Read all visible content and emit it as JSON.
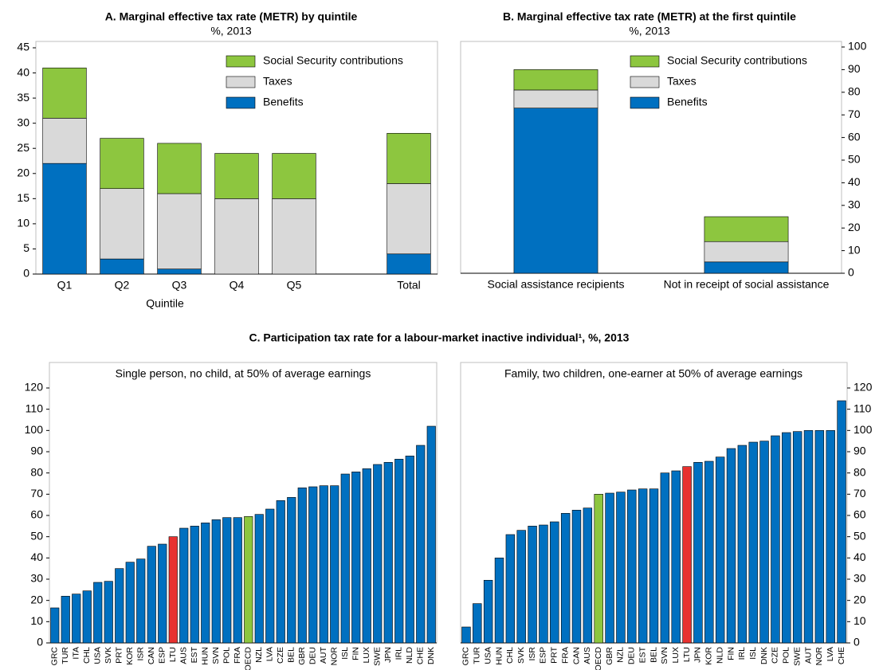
{
  "chart_data": [
    {
      "type": "stacked_bar",
      "title": "A. Marginal effective tax rate (METR) by quintile",
      "subtitle": "%, 2013",
      "x_label": "Quintile",
      "categories": [
        "Q1",
        "Q2",
        "Q3",
        "Q4",
        "Q5",
        null,
        "Total"
      ],
      "series": [
        {
          "name": "Benefits",
          "color": "#0070c0",
          "values": [
            22,
            3,
            1,
            0,
            0,
            null,
            4
          ]
        },
        {
          "name": "Taxes",
          "color": "#d9d9d9",
          "values": [
            9,
            14,
            15,
            15,
            15,
            null,
            14
          ]
        },
        {
          "name": "Social Security contributions",
          "color": "#8dc63f",
          "values": [
            10,
            10,
            10,
            9,
            9,
            null,
            10
          ]
        }
      ],
      "ylim": [
        0,
        45
      ],
      "yticks": [
        0,
        5,
        10,
        15,
        20,
        25,
        30,
        35,
        40,
        45
      ],
      "y_axis_side": "left",
      "legend": "upper right"
    },
    {
      "type": "stacked_bar",
      "title": "B. Marginal effective tax rate (METR) at the first quintile",
      "subtitle": "%, 2013",
      "categories": [
        "Social assistance recipients",
        "Not in receipt of social assistance"
      ],
      "series": [
        {
          "name": "Benefits",
          "color": "#0070c0",
          "values": [
            73,
            5
          ]
        },
        {
          "name": "Taxes",
          "color": "#d9d9d9",
          "values": [
            8,
            9
          ]
        },
        {
          "name": "Social Security contributions",
          "color": "#8dc63f",
          "values": [
            9,
            11
          ]
        }
      ],
      "ylim": [
        0,
        100
      ],
      "yticks": [
        0,
        10,
        20,
        30,
        40,
        50,
        60,
        70,
        80,
        90,
        100
      ],
      "y_axis_side": "right",
      "legend": "upper right"
    },
    {
      "type": "bar",
      "title": "Single person, no child, at 50% of average earnings",
      "categories": [
        "GRC",
        "TUR",
        "ITA",
        "CHL",
        "USA",
        "SVK",
        "PRT",
        "KOR",
        "ISR",
        "CAN",
        "ESP",
        "LTU",
        "AUS",
        "EST",
        "HUN",
        "SVN",
        "POL",
        "FRA",
        "OECD",
        "NZL",
        "LVA",
        "CZE",
        "BEL",
        "GBR",
        "DEU",
        "AUT",
        "NOR",
        "ISL",
        "FIN",
        "LUX",
        "SWE",
        "JPN",
        "IRL",
        "NLD",
        "CHE",
        "DNK"
      ],
      "values": [
        16.5,
        22,
        23,
        24.5,
        28.5,
        29,
        35,
        38,
        39.5,
        45.5,
        46.5,
        50,
        54,
        55,
        56.5,
        58,
        59,
        59,
        59.5,
        60.5,
        63,
        67,
        68.5,
        73,
        73.5,
        74,
        74,
        79.5,
        80.5,
        82,
        84,
        85,
        86.5,
        88,
        93,
        102
      ],
      "colors": [
        "#0070c0",
        "#0070c0",
        "#0070c0",
        "#0070c0",
        "#0070c0",
        "#0070c0",
        "#0070c0",
        "#0070c0",
        "#0070c0",
        "#0070c0",
        "#0070c0",
        "#e8312f",
        "#0070c0",
        "#0070c0",
        "#0070c0",
        "#0070c0",
        "#0070c0",
        "#0070c0",
        "#8dc63f",
        "#0070c0",
        "#0070c0",
        "#0070c0",
        "#0070c0",
        "#0070c0",
        "#0070c0",
        "#0070c0",
        "#0070c0",
        "#0070c0",
        "#0070c0",
        "#0070c0",
        "#0070c0",
        "#0070c0",
        "#0070c0",
        "#0070c0",
        "#0070c0",
        "#0070c0"
      ],
      "ylim": [
        0,
        120
      ],
      "yticks": [
        0,
        10,
        20,
        30,
        40,
        50,
        60,
        70,
        80,
        90,
        100,
        110,
        120
      ],
      "y_axis_side": "left"
    },
    {
      "type": "bar",
      "title": "Family, two children, one-earner at 50% of average earnings",
      "categories": [
        "GRC",
        "TUR",
        "USA",
        "HUN",
        "CHL",
        "SVK",
        "ISR",
        "ESP",
        "PRT",
        "FRA",
        "CAN",
        "AUS",
        "OECD",
        "GBR",
        "NZL",
        "DEU",
        "EST",
        "BEL",
        "SVN",
        "LUX",
        "LTU",
        "JPN",
        "KOR",
        "NLD",
        "FIN",
        "IRL",
        "ISL",
        "DNK",
        "CZE",
        "POL",
        "SWE",
        "AUT",
        "NOR",
        "LVA",
        "CHE"
      ],
      "values": [
        7.5,
        18.5,
        29.5,
        40,
        51,
        53,
        55,
        55.5,
        57,
        61,
        62.5,
        63.5,
        70,
        70.5,
        71,
        72,
        72.5,
        72.5,
        80,
        81,
        83,
        85,
        85.5,
        87.5,
        91.5,
        93,
        94.5,
        95,
        97.5,
        99,
        99.5,
        100,
        100,
        100,
        114
      ],
      "colors": [
        "#0070c0",
        "#0070c0",
        "#0070c0",
        "#0070c0",
        "#0070c0",
        "#0070c0",
        "#0070c0",
        "#0070c0",
        "#0070c0",
        "#0070c0",
        "#0070c0",
        "#0070c0",
        "#8dc63f",
        "#0070c0",
        "#0070c0",
        "#0070c0",
        "#0070c0",
        "#0070c0",
        "#0070c0",
        "#0070c0",
        "#e8312f",
        "#0070c0",
        "#0070c0",
        "#0070c0",
        "#0070c0",
        "#0070c0",
        "#0070c0",
        "#0070c0",
        "#0070c0",
        "#0070c0",
        "#0070c0",
        "#0070c0",
        "#0070c0",
        "#0070c0",
        "#0070c0"
      ],
      "ylim": [
        0,
        120
      ],
      "yticks": [
        0,
        10,
        20,
        30,
        40,
        50,
        60,
        70,
        80,
        90,
        100,
        110,
        120
      ],
      "y_axis_side": "right"
    }
  ],
  "panel_c_title": "C. Participation tax rate for a labour-market inactive individual¹, %, 2013"
}
